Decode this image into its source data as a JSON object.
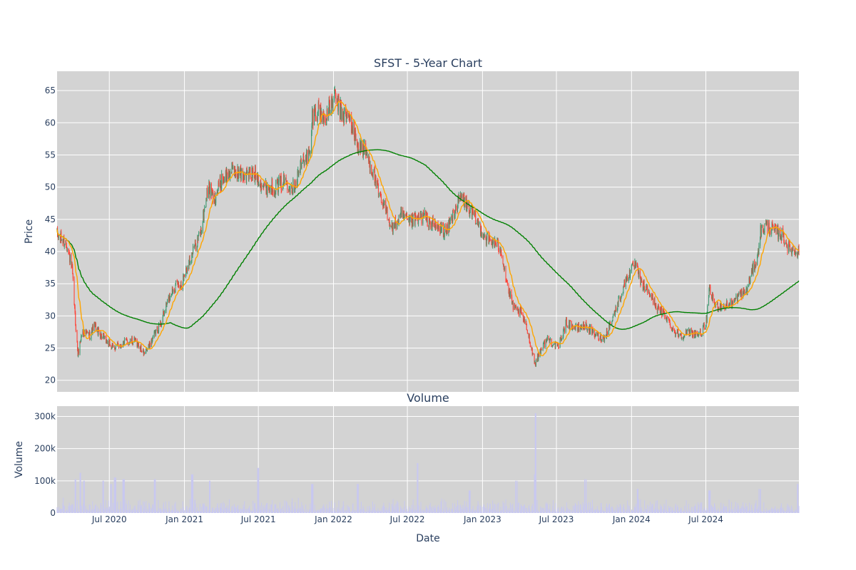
{
  "chart_data": [
    {
      "type": "candlestick",
      "title": "SFST - 5-Year Chart",
      "xlabel": "",
      "ylabel": "Price",
      "xlim": [
        "2020-02-24",
        "2025-02-14"
      ],
      "ylim": [
        18.2,
        68.0
      ],
      "yticks": [
        20,
        25,
        30,
        35,
        40,
        45,
        50,
        55,
        60,
        65
      ],
      "grid": true,
      "colors": {
        "increasing": "#3d9970",
        "decreasing": "#ff4136",
        "ma_short": "orange",
        "ma_long": "green",
        "background": "#d3d3d3"
      },
      "anchors": [
        [
          "2020-02-24",
          42.5
        ],
        [
          "2020-03-05",
          42.0
        ],
        [
          "2020-03-20",
          41.0
        ],
        [
          "2020-04-01",
          37.0
        ],
        [
          "2020-04-08",
          30.0
        ],
        [
          "2020-04-15",
          24.0
        ],
        [
          "2020-04-25",
          27.5
        ],
        [
          "2020-05-15",
          27.0
        ],
        [
          "2020-05-25",
          28.5
        ],
        [
          "2020-06-10",
          27.0
        ],
        [
          "2020-07-10",
          25.0
        ],
        [
          "2020-08-10",
          26.0
        ],
        [
          "2020-09-05",
          26.0
        ],
        [
          "2020-09-25",
          24.0
        ],
        [
          "2020-10-15",
          26.5
        ],
        [
          "2020-11-05",
          29.0
        ],
        [
          "2020-11-20",
          32.0
        ],
        [
          "2020-12-05",
          34.5
        ],
        [
          "2020-12-25",
          35.0
        ],
        [
          "2021-01-15",
          39.0
        ],
        [
          "2021-02-10",
          43.0
        ],
        [
          "2021-02-28",
          50.0
        ],
        [
          "2021-03-15",
          48.0
        ],
        [
          "2021-04-01",
          51.0
        ],
        [
          "2021-04-25",
          52.5
        ],
        [
          "2021-05-20",
          52.0
        ],
        [
          "2021-06-25",
          52.0
        ],
        [
          "2021-07-15",
          50.0
        ],
        [
          "2021-08-10",
          50.0
        ],
        [
          "2021-09-05",
          51.0
        ],
        [
          "2021-09-25",
          50.0
        ],
        [
          "2021-10-20",
          54.5
        ],
        [
          "2021-11-05",
          55.0
        ],
        [
          "2021-11-10",
          61.0
        ],
        [
          "2021-11-25",
          62.0
        ],
        [
          "2021-12-10",
          60.5
        ],
        [
          "2022-01-05",
          64.0
        ],
        [
          "2022-01-20",
          61.5
        ],
        [
          "2022-02-10",
          60.5
        ],
        [
          "2022-03-01",
          56.5
        ],
        [
          "2022-03-20",
          55.5
        ],
        [
          "2022-04-10",
          52.0
        ],
        [
          "2022-04-25",
          48.0
        ],
        [
          "2022-05-10",
          46.5
        ],
        [
          "2022-05-25",
          43.5
        ],
        [
          "2022-06-15",
          45.5
        ],
        [
          "2022-07-05",
          44.5
        ],
        [
          "2022-07-25",
          45.0
        ],
        [
          "2022-08-10",
          45.5
        ],
        [
          "2022-09-05",
          44.0
        ],
        [
          "2022-10-05",
          43.0
        ],
        [
          "2022-10-25",
          46.5
        ],
        [
          "2022-11-10",
          48.5
        ],
        [
          "2022-11-25",
          47.0
        ],
        [
          "2022-12-10",
          45.5
        ],
        [
          "2023-01-10",
          42.0
        ],
        [
          "2023-01-25",
          41.5
        ],
        [
          "2023-02-15",
          40.5
        ],
        [
          "2023-03-05",
          34.0
        ],
        [
          "2023-03-20",
          31.0
        ],
        [
          "2023-04-05",
          30.5
        ],
        [
          "2023-04-20",
          28.0
        ],
        [
          "2023-05-10",
          22.5
        ],
        [
          "2023-05-25",
          25.0
        ],
        [
          "2023-06-10",
          26.5
        ],
        [
          "2023-07-05",
          25.0
        ],
        [
          "2023-07-25",
          29.0
        ],
        [
          "2023-08-20",
          28.0
        ],
        [
          "2023-09-10",
          28.5
        ],
        [
          "2023-10-05",
          27.0
        ],
        [
          "2023-10-25",
          26.5
        ],
        [
          "2023-11-15",
          29.5
        ],
        [
          "2023-12-05",
          33.0
        ],
        [
          "2023-12-20",
          36.0
        ],
        [
          "2024-01-10",
          38.0
        ],
        [
          "2024-01-25",
          35.0
        ],
        [
          "2024-02-15",
          33.5
        ],
        [
          "2024-03-05",
          31.0
        ],
        [
          "2024-03-25",
          30.0
        ],
        [
          "2024-04-15",
          27.5
        ],
        [
          "2024-05-05",
          27.0
        ],
        [
          "2024-05-25",
          27.5
        ],
        [
          "2024-06-15",
          27.0
        ],
        [
          "2024-07-01",
          28.5
        ],
        [
          "2024-07-10",
          34.0
        ],
        [
          "2024-07-25",
          31.5
        ],
        [
          "2024-08-15",
          31.5
        ],
        [
          "2024-09-05",
          32.0
        ],
        [
          "2024-09-25",
          33.5
        ],
        [
          "2024-10-10",
          34.0
        ],
        [
          "2024-10-25",
          37.5
        ],
        [
          "2024-11-05",
          39.0
        ],
        [
          "2024-11-10",
          43.0
        ],
        [
          "2024-11-25",
          44.0
        ],
        [
          "2024-12-10",
          43.5
        ],
        [
          "2025-01-05",
          42.5
        ],
        [
          "2025-01-20",
          40.5
        ],
        [
          "2025-02-14",
          40.0
        ]
      ]
    },
    {
      "type": "bar",
      "title": "Volume",
      "xlabel": "Date",
      "ylabel": "Volume",
      "xlim": [
        "2020-02-24",
        "2025-02-14"
      ],
      "ylim": [
        0,
        332000
      ],
      "yticks": [
        0,
        100000,
        200000,
        300000
      ],
      "ytick_labels": [
        "0",
        "100k",
        "200k",
        "300k"
      ],
      "xticks": [
        "2020-07-01",
        "2021-01-01",
        "2021-07-01",
        "2022-01-01",
        "2022-07-01",
        "2023-01-01",
        "2023-07-01",
        "2024-01-01",
        "2024-07-01"
      ],
      "xtick_labels": [
        "Jul 2020",
        "Jan 2021",
        "Jul 2021",
        "Jan 2022",
        "Jul 2022",
        "Jan 2023",
        "Jul 2023",
        "Jan 2024",
        "Jul 2024"
      ],
      "grid": true,
      "colors": {
        "bar": "#c8c8f0",
        "background": "#d3d3d3"
      },
      "spikes": [
        [
          "2020-04-10",
          105000
        ],
        [
          "2020-04-20",
          125000
        ],
        [
          "2020-05-01",
          100000
        ],
        [
          "2020-06-15",
          100000
        ],
        [
          "2020-07-05",
          90000
        ],
        [
          "2020-07-15",
          110000
        ],
        [
          "2020-08-05",
          105000
        ],
        [
          "2020-10-20",
          105000
        ],
        [
          "2021-01-20",
          120000
        ],
        [
          "2021-03-05",
          100000
        ],
        [
          "2021-07-01",
          140000
        ],
        [
          "2021-11-10",
          90000
        ],
        [
          "2022-03-01",
          90000
        ],
        [
          "2022-07-25",
          155000
        ],
        [
          "2022-12-01",
          70000
        ],
        [
          "2023-03-25",
          100000
        ],
        [
          "2023-05-08",
          120000
        ],
        [
          "2023-05-12",
          310000
        ],
        [
          "2023-09-10",
          105000
        ],
        [
          "2024-01-15",
          75000
        ],
        [
          "2024-07-10",
          70000
        ],
        [
          "2024-11-10",
          75000
        ],
        [
          "2025-02-10",
          90000
        ]
      ]
    }
  ]
}
